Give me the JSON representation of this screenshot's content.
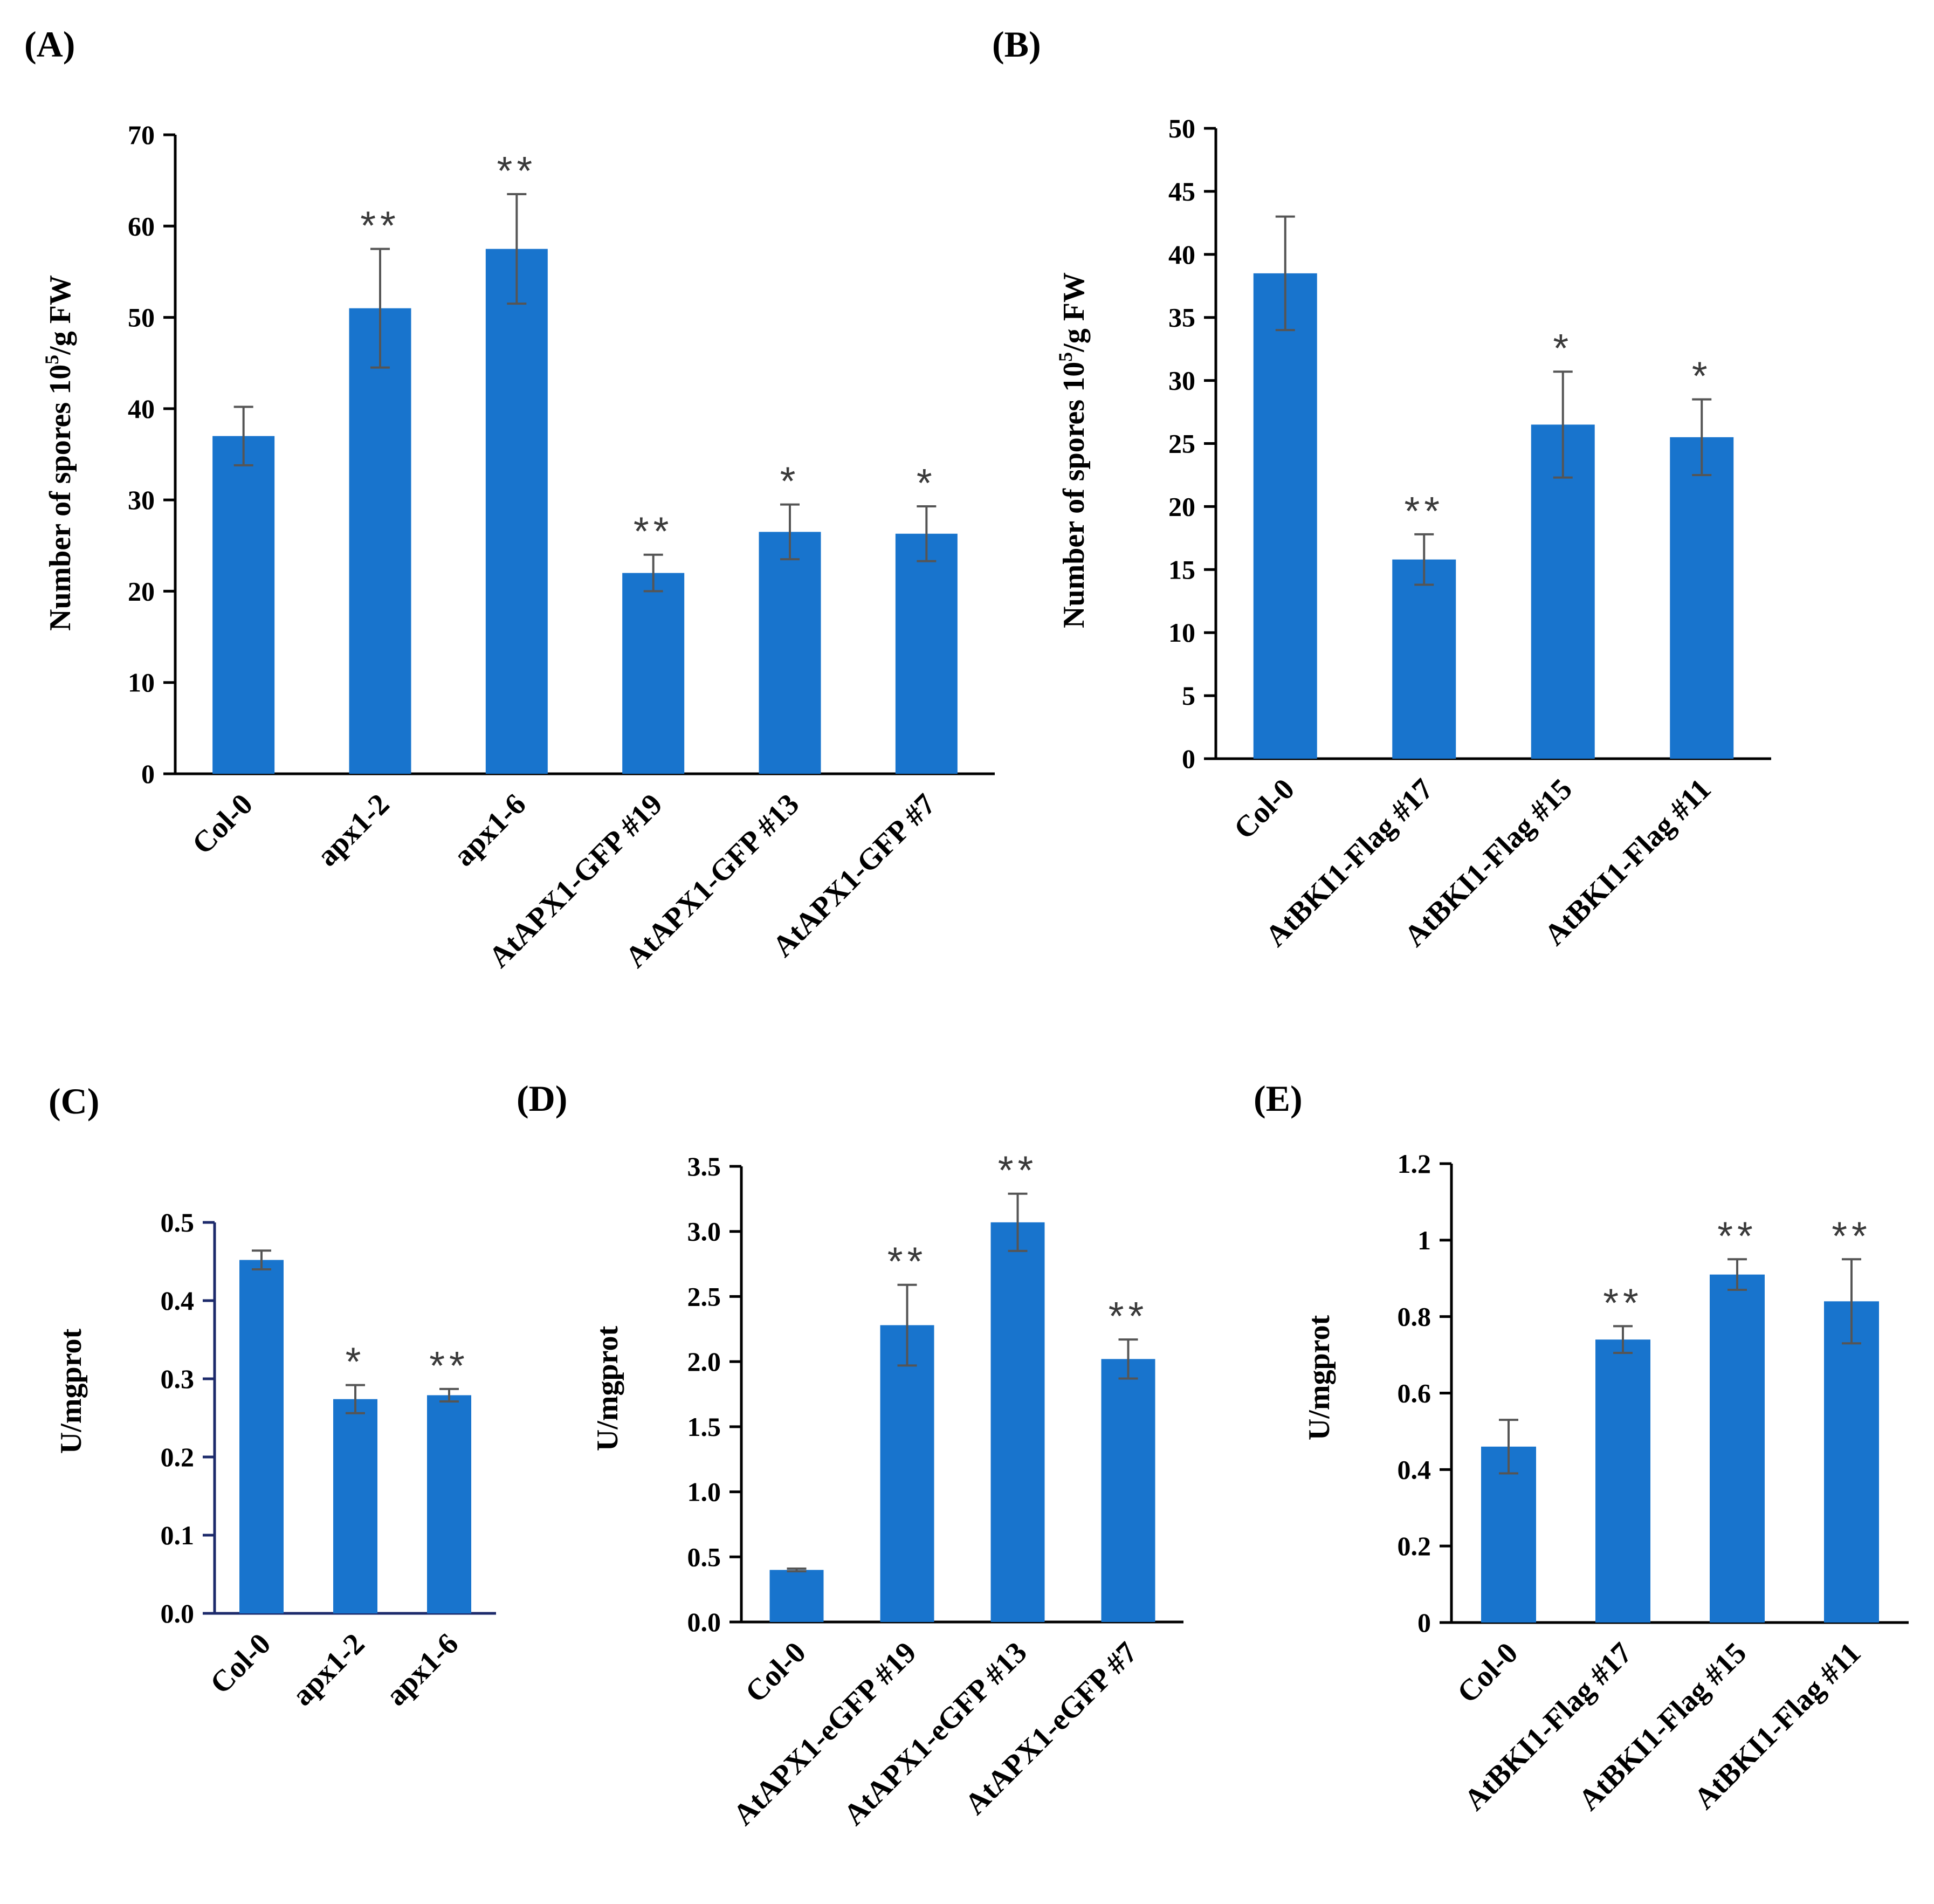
{
  "figure": {
    "bar_color": "#1874CD",
    "error_color": "#555555",
    "axis_color": "#000000"
  },
  "chart_data": [
    {
      "id": "A",
      "panel_label": "(A)",
      "type": "bar",
      "ylabel": "Number of spores 10",
      "ylabel_superscript": "5",
      "ylabel_suffix": "/g FW",
      "ylim": [
        0,
        70
      ],
      "yticks": [
        "0",
        "10",
        "20",
        "30",
        "40",
        "50",
        "60",
        "70"
      ],
      "categories": [
        "Col-0",
        "apx1-2",
        "apx1-6",
        "AtAPX1-GFP #19",
        "AtAPX1-GFP #13",
        "AtAPX1-GFP #7"
      ],
      "values": [
        37,
        51,
        57.5,
        22,
        26.5,
        26.3
      ],
      "errors": [
        3.2,
        6.5,
        6,
        2,
        3,
        3
      ],
      "significance": [
        "",
        "**",
        "**",
        "**",
        "*",
        "*"
      ]
    },
    {
      "id": "B",
      "panel_label": "(B)",
      "type": "bar",
      "ylabel": "Number of spores 10",
      "ylabel_superscript": "5",
      "ylabel_suffix": "/g FW",
      "ylim": [
        0,
        50
      ],
      "yticks": [
        "0",
        "5",
        "10",
        "15",
        "20",
        "25",
        "30",
        "35",
        "40",
        "45",
        "50"
      ],
      "categories": [
        "Col-0",
        "AtBKI1-Flag #17",
        "AtBKI1-Flag #15",
        "AtBKI1-Flag #11"
      ],
      "values": [
        38.5,
        15.8,
        26.5,
        25.5
      ],
      "errors": [
        4.5,
        2,
        4.2,
        3
      ],
      "significance": [
        "",
        "**",
        "*",
        "*"
      ]
    },
    {
      "id": "C",
      "panel_label": "(C)",
      "type": "bar",
      "ylabel": "U/mgprot",
      "ylim": [
        0,
        0.5
      ],
      "yticks": [
        "0.0",
        "0.1",
        "0.2",
        "0.3",
        "0.4",
        "0.5"
      ],
      "categories": [
        "Col-0",
        "apx1-2",
        "apx1-6"
      ],
      "values": [
        0.452,
        0.274,
        0.279
      ],
      "errors": [
        0.012,
        0.018,
        0.008
      ],
      "significance": [
        "",
        "*",
        "**"
      ]
    },
    {
      "id": "D",
      "panel_label": "(D)",
      "type": "bar",
      "ylabel": "U/mgprot",
      "ylim": [
        0,
        3.5
      ],
      "yticks": [
        "0.0",
        "0.5",
        "1.0",
        "1.5",
        "2.0",
        "2.5",
        "3.0",
        "3.5"
      ],
      "categories": [
        "Col-0",
        "AtAPX1-eGFP #19",
        "AtAPX1-eGFP #13",
        "AtAPX1-eGFP #7"
      ],
      "values": [
        0.4,
        2.28,
        3.07,
        2.02
      ],
      "errors": [
        0.01,
        0.31,
        0.22,
        0.15
      ],
      "significance": [
        "",
        "**",
        "**",
        "**"
      ]
    },
    {
      "id": "E",
      "panel_label": "(E)",
      "type": "bar",
      "ylabel": "U/mgprot",
      "ylim": [
        0,
        1.2
      ],
      "yticks": [
        "0",
        "0.2",
        "0.4",
        "0.6",
        "0.8",
        "1",
        "1.2"
      ],
      "categories": [
        "Col-0",
        "AtBKI1-Flag #17",
        "AtBKI1-Flag #15",
        "AtBKI1-Flag #11"
      ],
      "values": [
        0.46,
        0.74,
        0.91,
        0.84
      ],
      "errors": [
        0.07,
        0.035,
        0.04,
        0.11
      ],
      "significance": [
        "",
        "**",
        "**",
        "**"
      ]
    }
  ]
}
